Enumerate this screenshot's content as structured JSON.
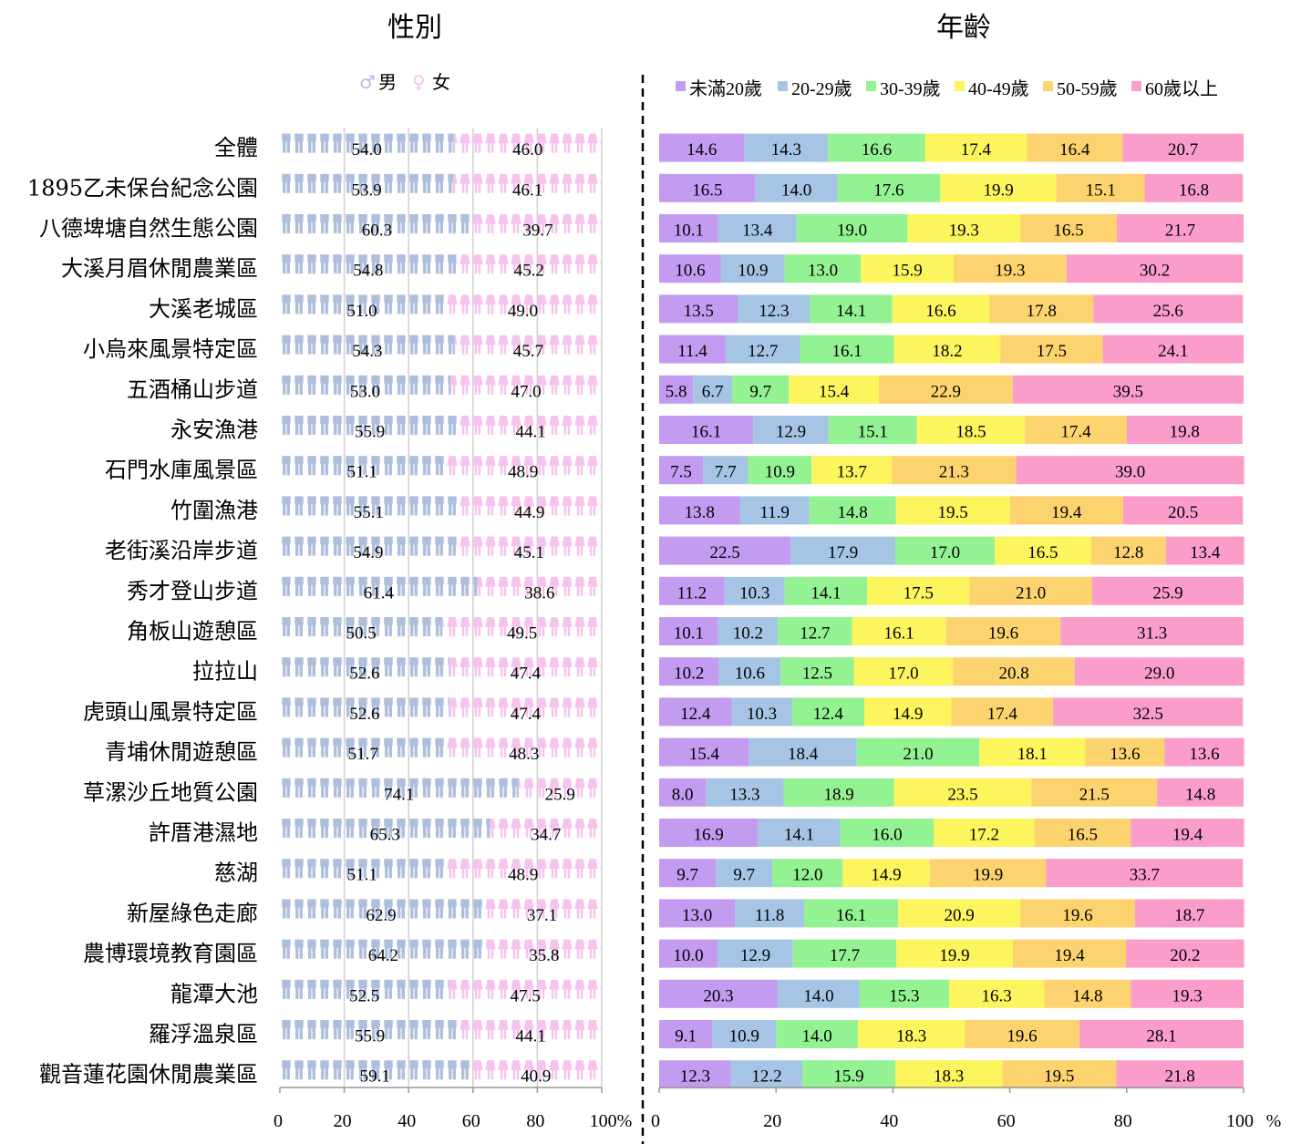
{
  "chart_data": [
    {
      "type": "bar",
      "stacked": true,
      "orientation": "horizontal",
      "title": "性別",
      "legend_position": "top",
      "xlim": [
        0,
        100
      ],
      "xticks": [
        "0",
        "20",
        "40",
        "60",
        "80",
        "100%"
      ],
      "grid": true,
      "categories": [
        "全體",
        "1895乙未保台紀念公園",
        "八德埤塘自然生態公園",
        "大溪月眉休閒農業區",
        "大溪老城區",
        "小烏來風景特定區",
        "五酒桶山步道",
        "永安漁港",
        "石門水庫風景區",
        "竹圍漁港",
        "老街溪沿岸步道",
        "秀才登山步道",
        "角板山遊憩區",
        "拉拉山",
        "虎頭山風景特定區",
        "青埔休閒遊憩區",
        "草漯沙丘地質公園",
        "許厝港濕地",
        "慈湖",
        "新屋綠色走廊",
        "農博環境教育園區",
        "龍潭大池",
        "羅浮溫泉區",
        "觀音蓮花園休閒農業區"
      ],
      "series": [
        {
          "name": "男",
          "color": "#adbfdc",
          "values": [
            54.0,
            53.9,
            60.3,
            54.8,
            51.0,
            54.3,
            53.0,
            55.9,
            51.1,
            55.1,
            54.9,
            61.4,
            50.5,
            52.6,
            52.6,
            51.7,
            74.1,
            65.3,
            51.1,
            62.9,
            64.2,
            52.5,
            55.9,
            59.1
          ]
        },
        {
          "name": "女",
          "color": "#f6c3ef",
          "values": [
            46.0,
            46.1,
            39.7,
            45.2,
            49.0,
            45.7,
            47.0,
            44.1,
            48.9,
            44.9,
            45.1,
            38.6,
            49.5,
            47.4,
            47.4,
            48.3,
            25.9,
            34.7,
            48.9,
            37.1,
            35.8,
            47.5,
            44.1,
            40.9
          ]
        }
      ]
    },
    {
      "type": "bar",
      "stacked": true,
      "orientation": "horizontal",
      "title": "年齡",
      "legend_position": "top",
      "xlim": [
        0,
        100
      ],
      "xticks": [
        "0",
        "20",
        "40",
        "60",
        "80",
        "100"
      ],
      "x_unit": "%",
      "grid": false,
      "series": [
        {
          "name": "未滿20歲",
          "color": "#c39bf0",
          "values": [
            14.6,
            16.5,
            10.1,
            10.6,
            13.5,
            11.4,
            5.8,
            16.1,
            7.5,
            13.8,
            22.5,
            11.2,
            10.1,
            10.2,
            12.4,
            15.4,
            8.0,
            16.9,
            9.7,
            13.0,
            10.0,
            20.3,
            9.1,
            12.3
          ]
        },
        {
          "name": "20-29歲",
          "color": "#a6c5e4",
          "values": [
            14.3,
            14.0,
            13.4,
            10.9,
            12.3,
            12.7,
            6.7,
            12.9,
            7.7,
            11.9,
            17.9,
            10.3,
            10.2,
            10.6,
            10.3,
            18.4,
            13.3,
            14.1,
            9.7,
            11.8,
            12.9,
            14.0,
            10.9,
            12.2
          ]
        },
        {
          "name": "30-39歲",
          "color": "#93f291",
          "values": [
            16.6,
            17.6,
            19.0,
            13.0,
            14.1,
            16.1,
            9.7,
            15.1,
            10.9,
            14.8,
            17.0,
            14.1,
            12.7,
            12.5,
            12.4,
            21.0,
            18.9,
            16.0,
            12.0,
            16.1,
            17.7,
            15.3,
            14.0,
            15.9
          ]
        },
        {
          "name": "40-49歲",
          "color": "#fcf55e",
          "values": [
            17.4,
            19.9,
            19.3,
            15.9,
            16.6,
            18.2,
            15.4,
            18.5,
            13.7,
            19.5,
            16.5,
            17.5,
            16.1,
            17.0,
            14.9,
            18.1,
            23.5,
            17.2,
            14.9,
            20.9,
            19.9,
            16.3,
            18.3,
            18.3
          ]
        },
        {
          "name": "50-59歲",
          "color": "#fcd36e",
          "values": [
            16.4,
            15.1,
            16.5,
            19.3,
            17.8,
            17.5,
            22.9,
            17.4,
            21.3,
            19.4,
            12.8,
            21.0,
            19.6,
            20.8,
            17.4,
            13.6,
            21.5,
            16.5,
            19.9,
            19.6,
            19.4,
            14.8,
            19.6,
            19.5
          ]
        },
        {
          "name": "60歲以上",
          "color": "#fb9dcb",
          "values": [
            20.7,
            16.8,
            21.7,
            30.2,
            25.6,
            24.1,
            39.5,
            19.8,
            39.0,
            20.5,
            13.4,
            25.9,
            31.3,
            29.0,
            32.5,
            13.6,
            14.8,
            19.4,
            33.7,
            18.7,
            20.2,
            19.3,
            28.1,
            21.8
          ]
        }
      ]
    }
  ]
}
